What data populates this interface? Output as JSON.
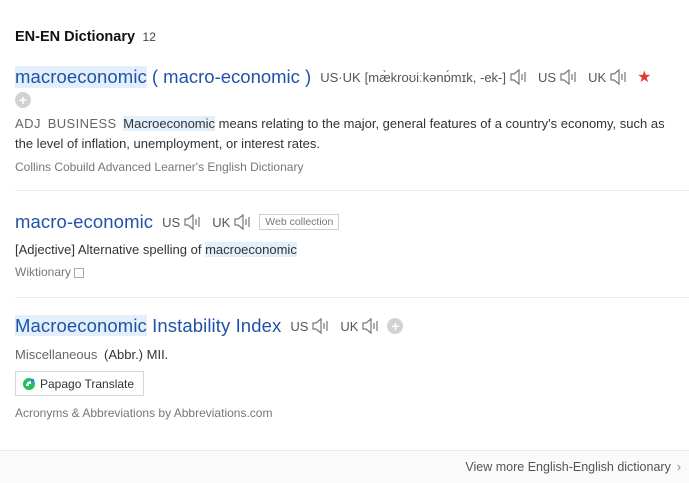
{
  "header": {
    "title": "EN-EN Dictionary",
    "count": "12"
  },
  "entries": [
    {
      "headword": "macroeconomic",
      "variant": "( macro-economic )",
      "pron": [
        {
          "region": "US·UK",
          "phonetic": "[mæ̀kroʊiːkənɒ́mɪk, -ek-]"
        },
        {
          "region": "US",
          "phonetic": ""
        },
        {
          "region": "UK",
          "phonetic": ""
        }
      ],
      "pos": "ADJ",
      "subject": "BUSINESS",
      "def_term": "Macroeconomic",
      "def_rest": " means relating to the major, general features of a country's economy, such as the level of inflation, unemployment, or interest rates.",
      "source": "Collins Cobuild Advanced Learner's English Dictionary"
    },
    {
      "headword": "macro-economic",
      "pron": [
        {
          "region": "US"
        },
        {
          "region": "UK"
        }
      ],
      "tag": "Web collection",
      "def_prefix": "[Adjective] Alternative spelling of ",
      "def_term": "macroeconomic",
      "source": "Wiktionary"
    },
    {
      "headword_hl": "Macroeconomic",
      "headword_rest": " Instability Index",
      "pron": [
        {
          "region": "US"
        },
        {
          "region": "UK"
        }
      ],
      "misc_label": "Miscellaneous",
      "misc_value": "(Abbr.) MII.",
      "translate_label": "Papago Translate",
      "source": "Acronyms & Abbreviations by Abbreviations.com"
    }
  ],
  "footer": {
    "more_label": "View more English-English dictionary"
  },
  "icons": {
    "speaker": "speaker-icon",
    "star": "star-icon",
    "plus": "plus-icon",
    "chevron": "chevron-right-icon"
  },
  "colors": {
    "headword": "#2052a8",
    "highlight": "#e3effb",
    "star": "#e33a2a"
  }
}
